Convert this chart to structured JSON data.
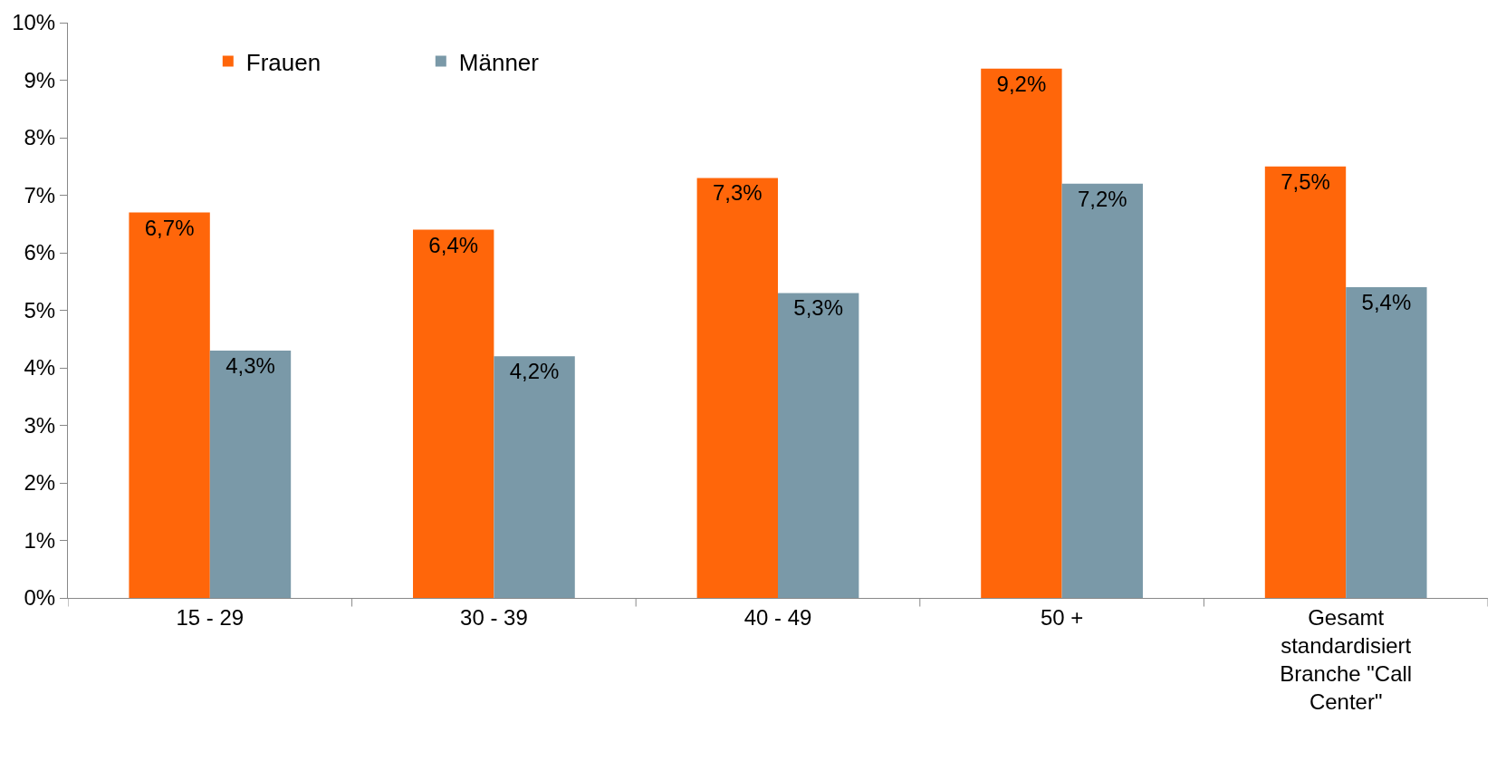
{
  "chart_data": {
    "type": "bar",
    "categories": [
      "15 - 29",
      "30 - 39",
      "40 - 49",
      "50 +",
      "Gesamt standardisiert Branche \"Call Center\""
    ],
    "series": [
      {
        "name": "Frauen",
        "color": "#ff660a",
        "values": [
          6.7,
          6.4,
          7.3,
          9.2,
          7.5
        ],
        "value_labels": [
          "6,7%",
          "6,4%",
          "7,3%",
          "9,2%",
          "7,5%"
        ]
      },
      {
        "name": "Männer",
        "color": "#7a99a8",
        "values": [
          4.3,
          4.2,
          5.3,
          7.2,
          5.4
        ],
        "value_labels": [
          "4,3%",
          "4,2%",
          "5,3%",
          "7,2%",
          "5,4%"
        ]
      }
    ],
    "ylim": [
      0,
      10
    ],
    "yticks": [
      {
        "value": 0,
        "label": "0%"
      },
      {
        "value": 1,
        "label": "1%"
      },
      {
        "value": 2,
        "label": "2%"
      },
      {
        "value": 3,
        "label": "3%"
      },
      {
        "value": 4,
        "label": "4%"
      },
      {
        "value": 5,
        "label": "5%"
      },
      {
        "value": 6,
        "label": "6%"
      },
      {
        "value": 7,
        "label": "7%"
      },
      {
        "value": 8,
        "label": "8%"
      },
      {
        "value": 9,
        "label": "9%"
      },
      {
        "value": 10,
        "label": "10%"
      }
    ],
    "legend": "top left"
  }
}
